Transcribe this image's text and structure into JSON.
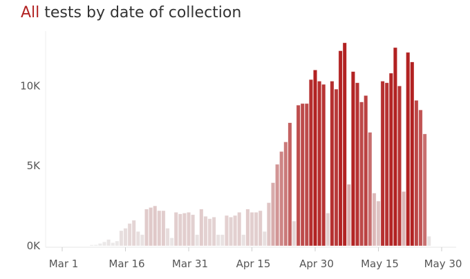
{
  "chart_data": {
    "type": "bar",
    "title_highlight": "All",
    "title_rest": " tests by date of collection",
    "xlabel": "",
    "ylabel": "",
    "ylim": [
      0,
      13000
    ],
    "y_ticks": [
      {
        "value": 0,
        "label": "0K"
      },
      {
        "value": 5000,
        "label": "5K"
      },
      {
        "value": 10000,
        "label": "10K"
      }
    ],
    "x_ticks": [
      {
        "day": 0,
        "label": "Mar 1"
      },
      {
        "day": 15,
        "label": "Mar 16"
      },
      {
        "day": 30,
        "label": "Mar 31"
      },
      {
        "day": 45,
        "label": "Apr 15"
      },
      {
        "day": 60,
        "label": "Apr 30"
      },
      {
        "day": 75,
        "label": "May 15"
      },
      {
        "day": 90,
        "label": "May 30"
      }
    ],
    "start_date": "Mar 1",
    "grid": false,
    "color_scale": {
      "low": "#ebebeb",
      "mid": "#e0c8c8",
      "high": "#b22222"
    },
    "values": [
      0,
      0,
      0,
      0,
      0,
      0,
      0,
      60,
      70,
      150,
      250,
      400,
      200,
      300,
      950,
      1100,
      1400,
      1600,
      900,
      700,
      2300,
      2400,
      2500,
      2200,
      2200,
      1100,
      500,
      2100,
      2000,
      2050,
      2100,
      1950,
      700,
      2300,
      1850,
      1700,
      1800,
      700,
      700,
      1900,
      1800,
      1900,
      2100,
      700,
      2300,
      2100,
      2100,
      2200,
      900,
      2700,
      3950,
      5100,
      5900,
      6500,
      7700,
      1550,
      8800,
      8900,
      8900,
      10400,
      11000,
      10300,
      10100,
      2050,
      10300,
      9800,
      12200,
      12700,
      3850,
      10900,
      10200,
      9000,
      9400,
      7100,
      3300,
      2800,
      10300,
      10200,
      10800,
      12400,
      10000,
      3400,
      12100,
      11500,
      9100,
      8500,
      7000,
      600
    ]
  }
}
